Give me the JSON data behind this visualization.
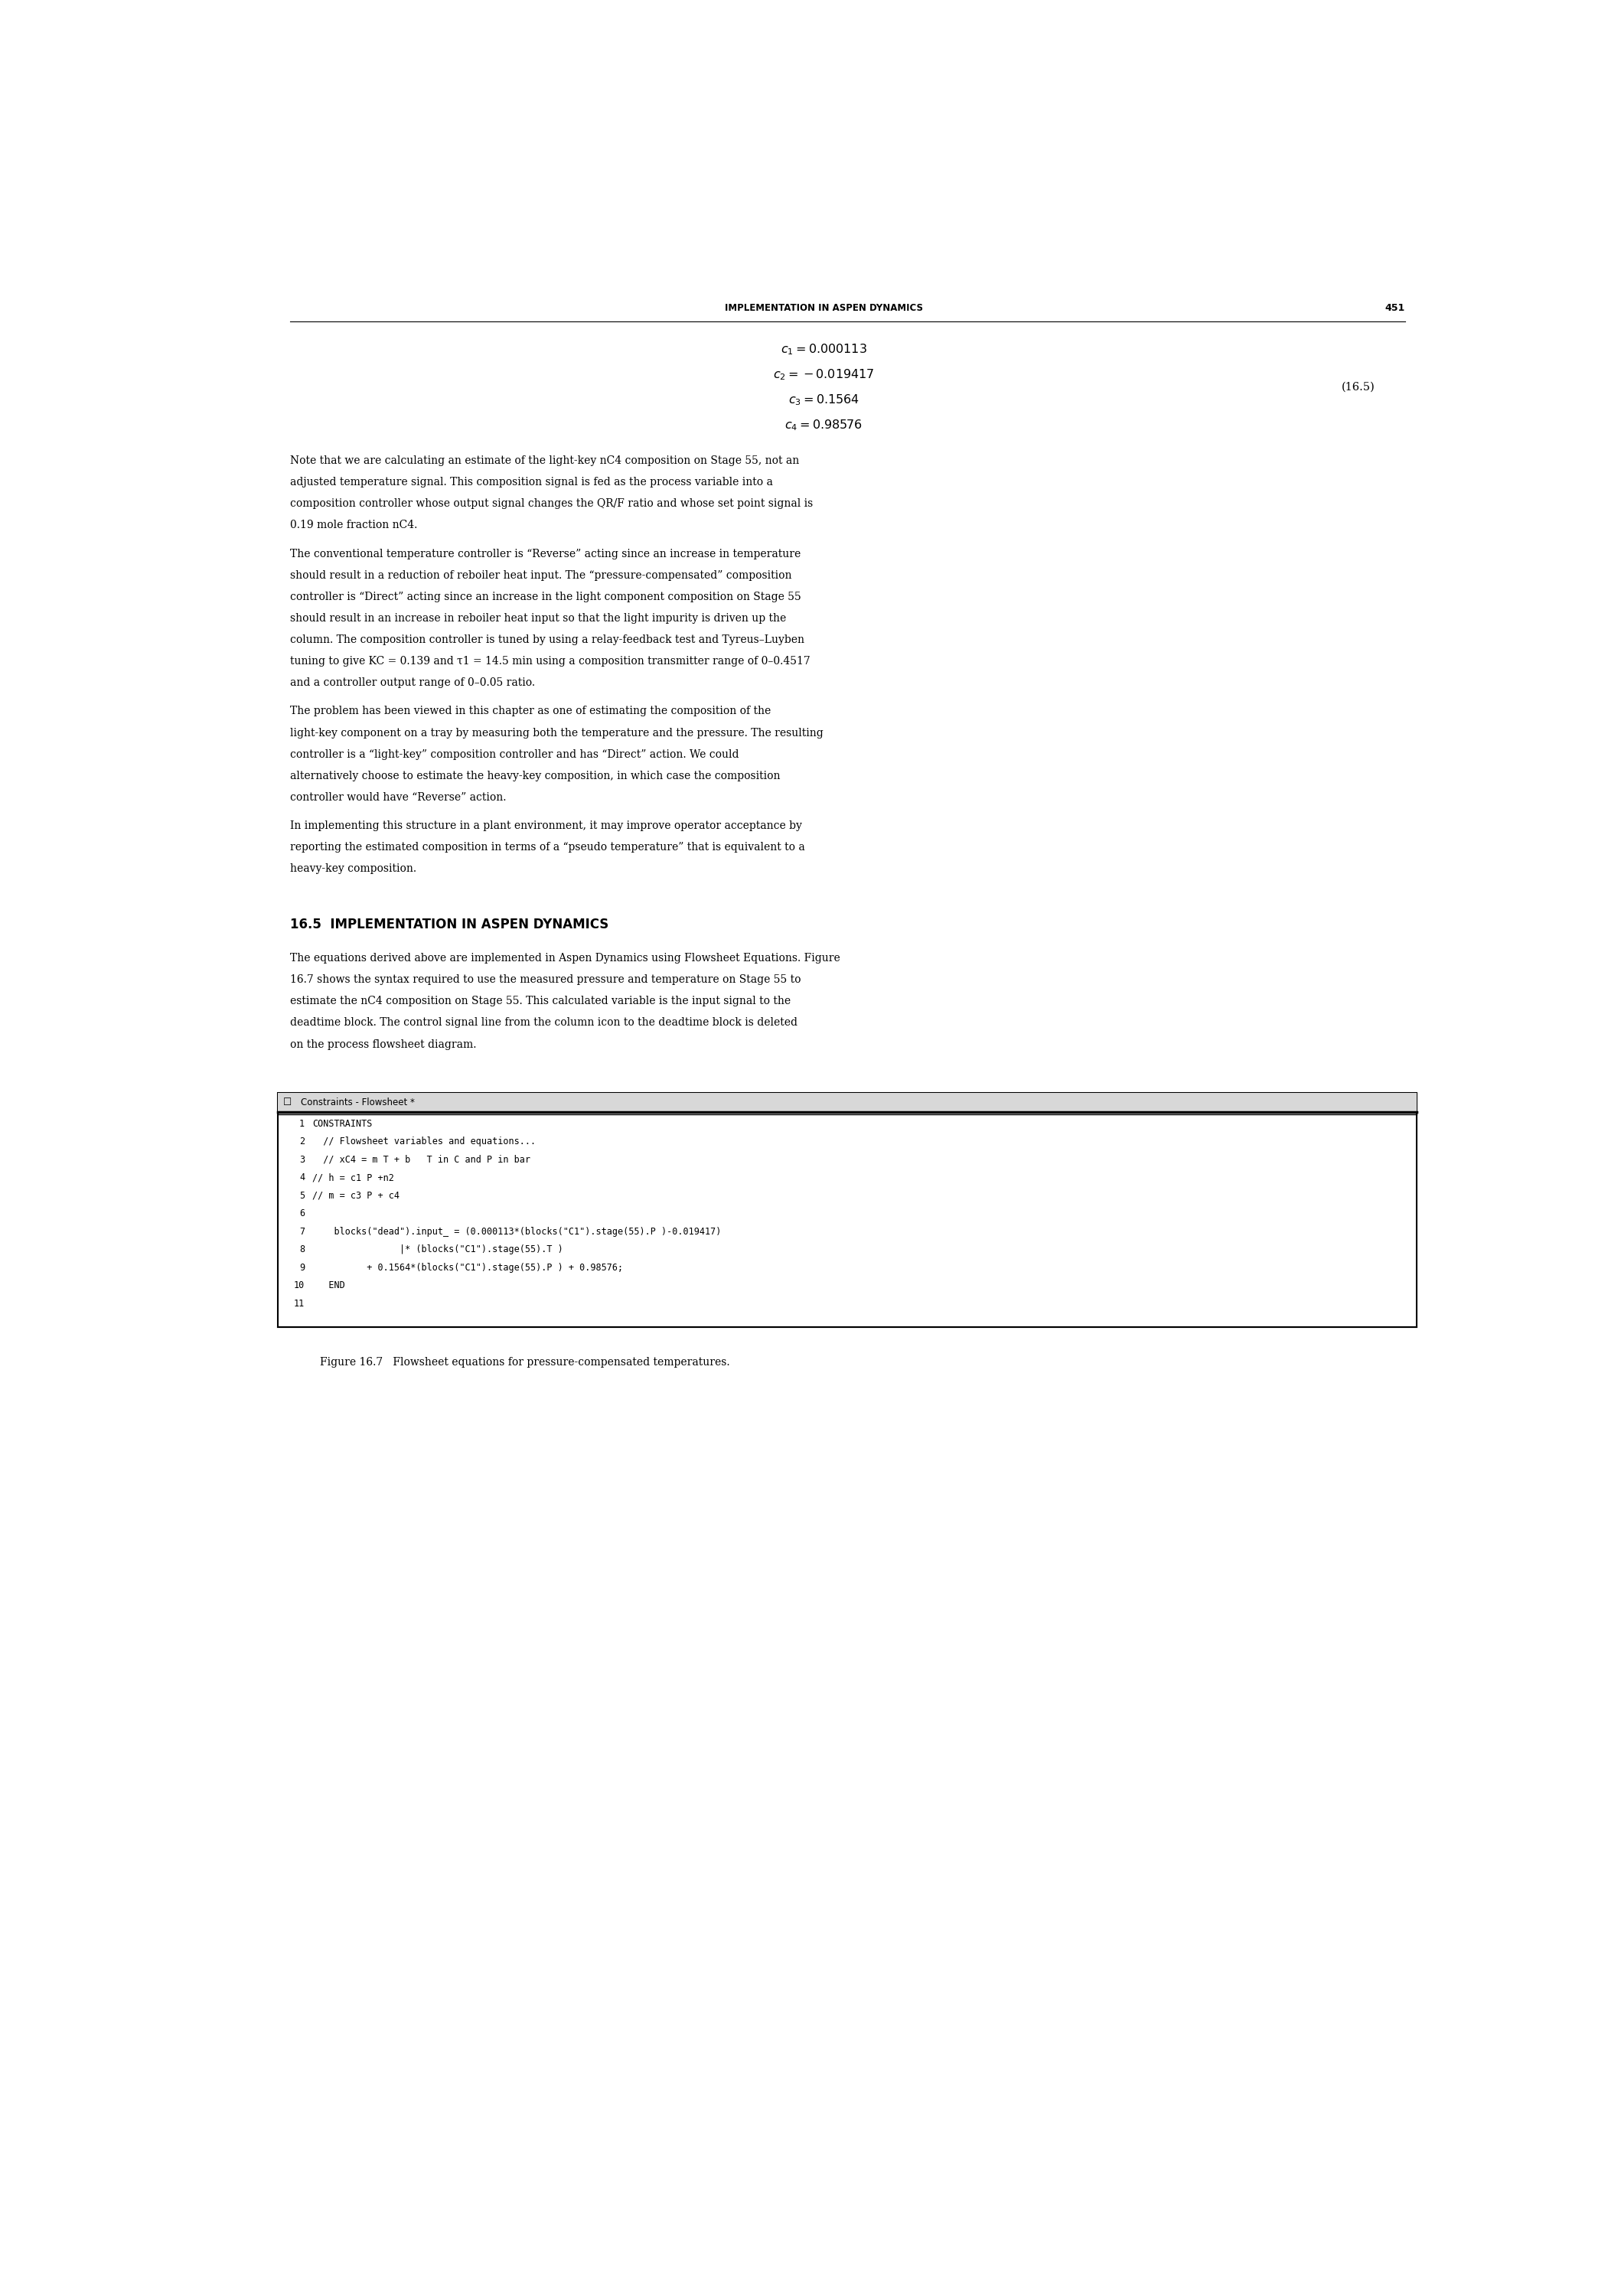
{
  "header_text": "IMPLEMENTATION IN ASPEN DYNAMICS",
  "header_page": "451",
  "bg_color": "#ffffff",
  "text_color": "#000000",
  "eq_lines": [
    "$c_1 = 0.000113$",
    "$c_2 = -0.019417$",
    "$c_3 = 0.1564$",
    "$c_4 = 0.98576$"
  ],
  "eq_label": "(16.5)",
  "paragraph1": "Note that we are calculating an estimate of the light-key nC4 composition on Stage 55, not an adjusted temperature signal. This composition signal is fed as the process variable into a composition controller whose output signal changes the QR/F ratio and whose set point signal is 0.19 mole fraction nC4.",
  "paragraph2": "    The conventional temperature controller is “Reverse” acting since an increase in temperature should result in a reduction of reboiler heat input. The “pressure-compensated” composition controller is “Direct” acting since an increase in the light component composition on Stage 55 should result in an increase in reboiler heat input so that the light impurity is driven up the column. The composition controller is tuned by using a relay-feedback test and Tyreus–Luyben tuning to give KC = 0.139 and τ1 = 14.5 min using a composition transmitter range of 0–0.4517 and a controller output range of 0–0.05 ratio.",
  "paragraph3": "    The problem has been viewed in this chapter as one of estimating the composition of the light-key component on a tray by measuring both the temperature and the pressure. The resulting controller is a “light-key” composition controller and has “Direct” action. We could alternatively choose to estimate the heavy-key composition, in which case the composition controller would have “Reverse” action.",
  "paragraph4": "    In implementing this structure in a plant environment, it may improve operator acceptance by reporting the estimated composition in terms of a “pseudo temperature” that is equivalent to a heavy-key composition.",
  "section_heading": "16.5  IMPLEMENTATION IN ASPEN DYNAMICS",
  "body_para": "The equations derived above are implemented in Aspen Dynamics using Flowsheet Equations. Figure 16.7 shows the syntax required to use the measured pressure and temperature on Stage 55 to estimate the nC4 composition on Stage 55. This calculated variable is the input signal to the deadtime block. The control signal line from the column icon to the deadtime block is deleted on the process flowsheet diagram.",
  "code_title": "Constraints - Flowsheet *",
  "code_lines": [
    {
      "num": "1",
      "text": "CONSTRAINTS"
    },
    {
      "num": "2",
      "text": "  // Flowsheet variables and equations..."
    },
    {
      "num": "3",
      "text": "  // xC4 = m T + b   T in C and P in bar"
    },
    {
      "num": "4",
      "text": "// h = c1 P +n2"
    },
    {
      "num": "5",
      "text": "// m = c3 P + c4"
    },
    {
      "num": "6",
      "text": ""
    },
    {
      "num": "7",
      "text": "    blocks(\"dead\").input_ = (0.000113*(blocks(\"C1\").stage(55).P )-0.019417)"
    },
    {
      "num": "8",
      "text": "                |* (blocks(\"C1\").stage(55).T )"
    },
    {
      "num": "9",
      "text": "          + 0.1564*(blocks(\"C1\").stage(55).P ) + 0.98576;"
    },
    {
      "num": "10",
      "text": "   END"
    },
    {
      "num": "11",
      "text": ""
    }
  ],
  "figure_caption": "Figure 16.7   Flowsheet equations for pressure-compensated temperatures."
}
